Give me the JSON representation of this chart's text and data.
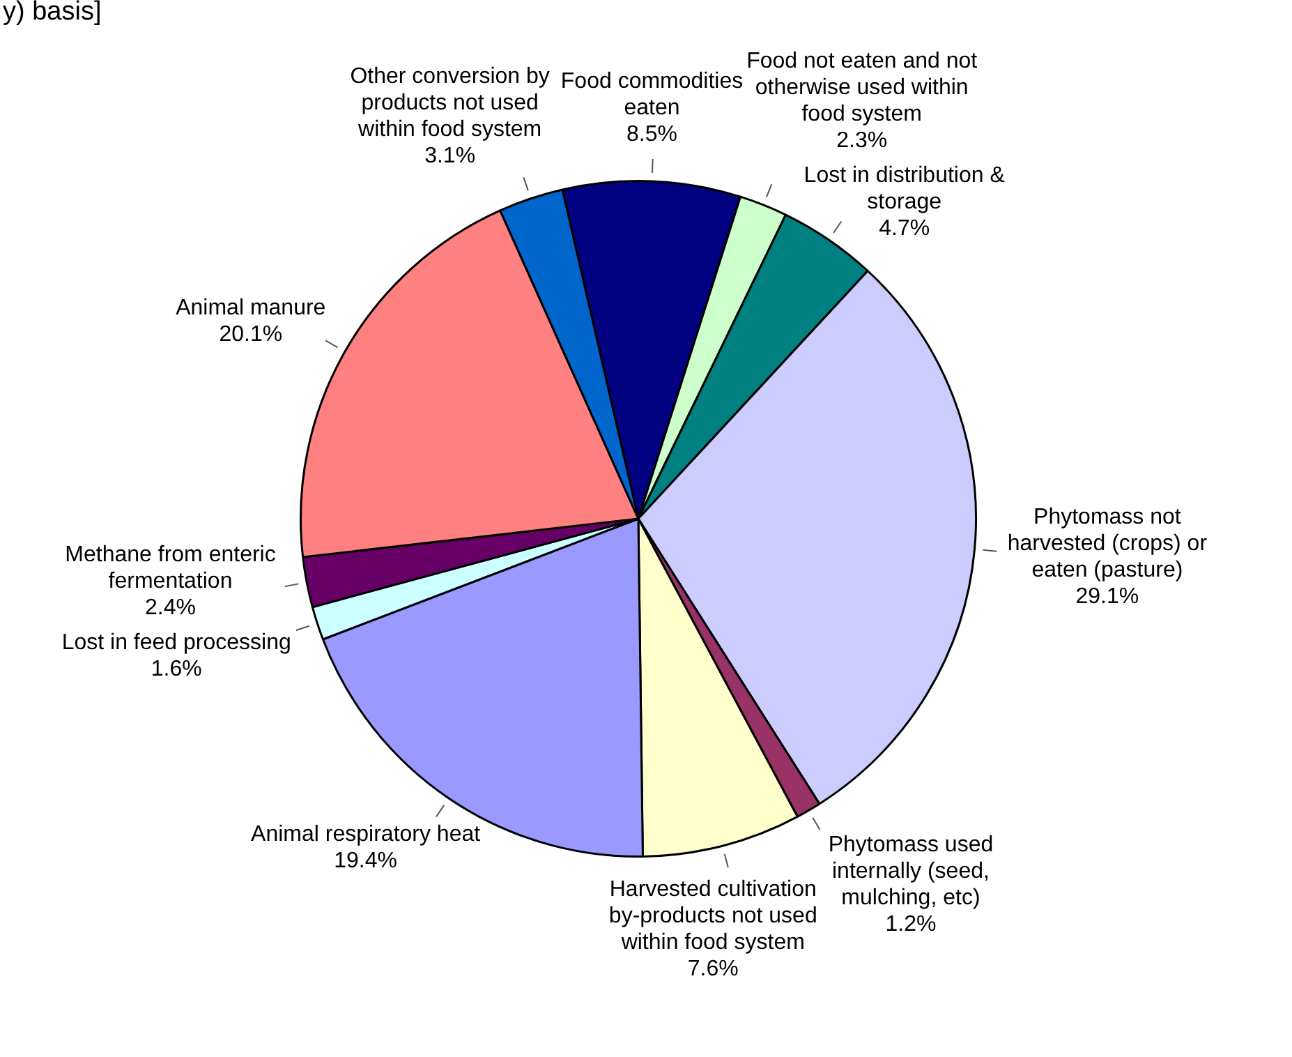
{
  "chart_data": {
    "type": "pie",
    "title": "y) basis]",
    "categories": [
      "Food commodities eaten",
      "Food not eaten and not otherwise used within food system",
      "Lost in distribution & storage",
      "Phytomass not harvested (crops) or eaten (pasture)",
      "Phytomass used internally (seed, mulching, etc)",
      "Harvested cultivation by-products not used within food system",
      "Animal respiratory heat",
      "Lost in feed processing",
      "Methane from enteric fermentation",
      "Animal manure",
      "Other conversion by products not used within food system"
    ],
    "values": [
      8.5,
      2.3,
      4.7,
      29.1,
      1.2,
      7.6,
      19.4,
      1.6,
      2.4,
      20.1,
      3.1
    ],
    "value_labels": [
      "8.5%",
      "2.3%",
      "4.7%",
      "29.1%",
      "1.2%",
      "7.6%",
      "19.4%",
      "1.6%",
      "2.4%",
      "20.1%",
      "3.1%"
    ],
    "colors": [
      "#000080",
      "#ccffcc",
      "#008080",
      "#ccccff",
      "#993366",
      "#ffffcc",
      "#9999ff",
      "#ccffff",
      "#660066",
      "#ff8080",
      "#0066cc"
    ],
    "legend": false
  }
}
